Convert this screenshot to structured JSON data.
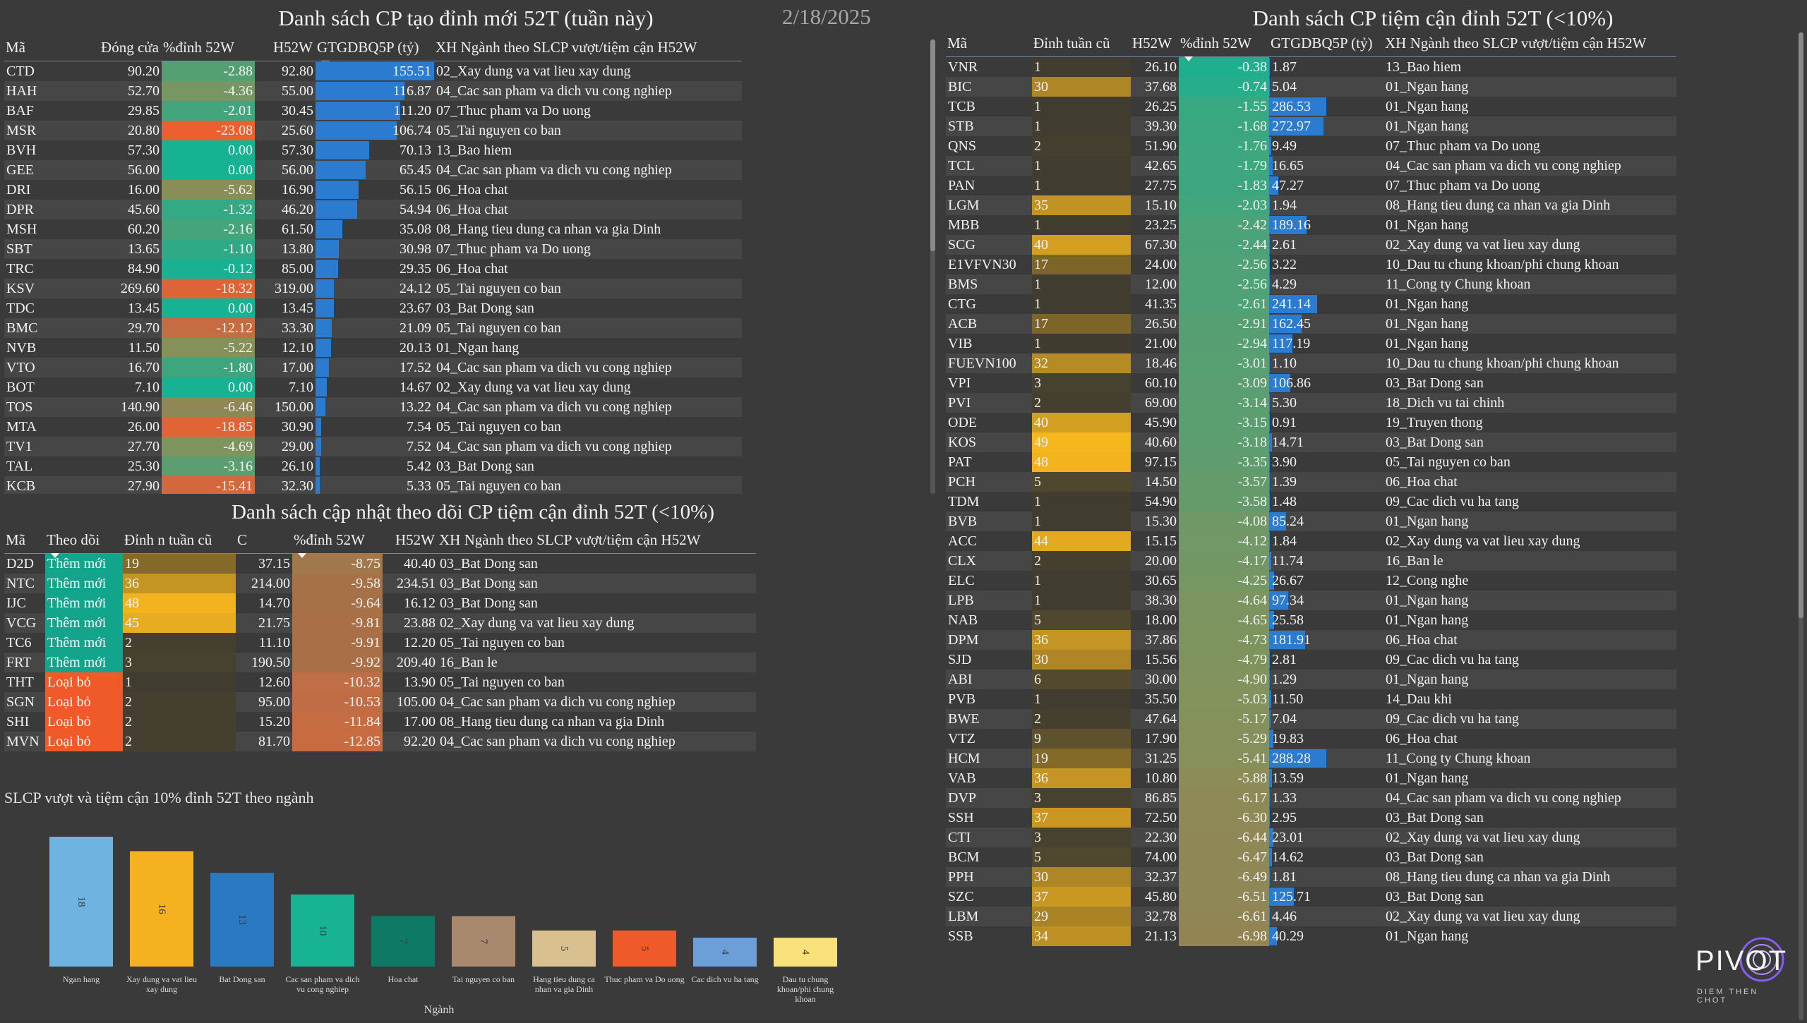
{
  "date": "2/18/2025",
  "new_highs": {
    "title": "Danh sách CP tạo đỉnh mới 52T (tuần này)",
    "columns": [
      "Mã",
      "Đóng cửa",
      "%đỉnh 52W",
      "H52W",
      "GTGDBQ5P (tỷ)",
      "XH Ngành theo SLCP vượt/tiệm cận H52W"
    ],
    "rows": [
      [
        "CTD",
        "90.20",
        "-2.88",
        "92.80",
        "155.51",
        "02_Xay dung va vat lieu xay dung"
      ],
      [
        "HAH",
        "52.70",
        "-4.36",
        "55.00",
        "116.87",
        "04_Cac san pham va dich vu cong nghiep"
      ],
      [
        "BAF",
        "29.85",
        "-2.01",
        "30.45",
        "111.20",
        "07_Thuc pham va Do uong"
      ],
      [
        "MSR",
        "20.80",
        "-23.08",
        "25.60",
        "106.74",
        "05_Tai nguyen co ban"
      ],
      [
        "BVH",
        "57.30",
        "0.00",
        "57.30",
        "70.13",
        "13_Bao hiem"
      ],
      [
        "GEE",
        "56.00",
        "0.00",
        "56.00",
        "65.45",
        "04_Cac san pham va dich vu cong nghiep"
      ],
      [
        "DRI",
        "16.00",
        "-5.62",
        "16.90",
        "56.15",
        "06_Hoa chat"
      ],
      [
        "DPR",
        "45.60",
        "-1.32",
        "46.20",
        "54.94",
        "06_Hoa chat"
      ],
      [
        "MSH",
        "60.20",
        "-2.16",
        "61.50",
        "35.08",
        "08_Hang tieu dung ca nhan va gia Dinh"
      ],
      [
        "SBT",
        "13.65",
        "-1.10",
        "13.80",
        "30.98",
        "07_Thuc pham va Do uong"
      ],
      [
        "TRC",
        "84.90",
        "-0.12",
        "85.00",
        "29.35",
        "06_Hoa chat"
      ],
      [
        "KSV",
        "269.60",
        "-18.32",
        "319.00",
        "24.12",
        "05_Tai nguyen co ban"
      ],
      [
        "TDC",
        "13.45",
        "0.00",
        "13.45",
        "23.67",
        "03_Bat Dong san"
      ],
      [
        "BMC",
        "29.70",
        "-12.12",
        "33.30",
        "21.09",
        "05_Tai nguyen co ban"
      ],
      [
        "NVB",
        "11.50",
        "-5.22",
        "12.10",
        "20.13",
        "01_Ngan hang"
      ],
      [
        "VTO",
        "16.70",
        "-1.80",
        "17.00",
        "17.52",
        "04_Cac san pham va dich vu cong nghiep"
      ],
      [
        "BOT",
        "7.10",
        "0.00",
        "7.10",
        "14.67",
        "02_Xay dung va vat lieu xay dung"
      ],
      [
        "TOS",
        "140.90",
        "-6.46",
        "150.00",
        "13.22",
        "04_Cac san pham va dich vu cong nghiep"
      ],
      [
        "MTA",
        "26.00",
        "-18.85",
        "30.90",
        "7.54",
        "05_Tai nguyen co ban"
      ],
      [
        "TV1",
        "27.70",
        "-4.69",
        "29.00",
        "7.52",
        "04_Cac san pham va dich vu cong nghiep"
      ],
      [
        "TAL",
        "25.30",
        "-3.16",
        "26.10",
        "5.42",
        "03_Bat Dong san"
      ],
      [
        "KCB",
        "27.90",
        "-15.41",
        "32.30",
        "5.33",
        "05_Tai nguyen co ban"
      ]
    ]
  },
  "watch_updates": {
    "title": "Danh sách cập nhật theo dõi CP tiệm cận đỉnh 52T (<10%)",
    "columns": [
      "Mã",
      "Theo dõi",
      "Đỉnh n tuần cũ",
      "C",
      "%đỉnh 52W",
      "H52W",
      "XH Ngành theo SLCP vượt/tiệm cận H52W"
    ],
    "rows": [
      [
        "D2D",
        "Thêm mới",
        "19",
        "37.15",
        "-8.75",
        "40.40",
        "03_Bat Dong san"
      ],
      [
        "NTC",
        "Thêm mới",
        "36",
        "214.00",
        "-9.58",
        "234.51",
        "03_Bat Dong san"
      ],
      [
        "IJC",
        "Thêm mới",
        "48",
        "14.70",
        "-9.64",
        "16.12",
        "03_Bat Dong san"
      ],
      [
        "VCG",
        "Thêm mới",
        "45",
        "21.75",
        "-9.81",
        "23.88",
        "02_Xay dung va vat lieu xay dung"
      ],
      [
        "TC6",
        "Thêm mới",
        "2",
        "11.10",
        "-9.91",
        "12.20",
        "05_Tai nguyen co ban"
      ],
      [
        "FRT",
        "Thêm mới",
        "3",
        "190.50",
        "-9.92",
        "209.40",
        "16_Ban le"
      ],
      [
        "THT",
        "Loại bỏ",
        "1",
        "12.60",
        "-10.32",
        "13.90",
        "05_Tai nguyen co ban"
      ],
      [
        "SGN",
        "Loại bỏ",
        "2",
        "95.00",
        "-10.53",
        "105.00",
        "04_Cac san pham va dich vu cong nghiep"
      ],
      [
        "SHI",
        "Loại bỏ",
        "2",
        "15.20",
        "-11.84",
        "17.00",
        "08_Hang tieu dung ca nhan va gia Dinh"
      ],
      [
        "MVN",
        "Loại bỏ",
        "2",
        "81.70",
        "-12.85",
        "92.20",
        "04_Cac san pham va dich vu cong nghiep"
      ]
    ]
  },
  "near_highs": {
    "title": "Danh sách CP tiệm cận đỉnh 52T (<10%)",
    "columns": [
      "Mã",
      "Đỉnh tuần cũ",
      "H52W",
      "%đỉnh 52W",
      "GTGDBQ5P (tỷ)",
      "XH Ngành theo SLCP vượt/tiệm cận H52W"
    ],
    "rows": [
      [
        "VNR",
        "1",
        "26.10",
        "-0.38",
        "1.87",
        "13_Bao hiem"
      ],
      [
        "BIC",
        "30",
        "37.68",
        "-0.74",
        "5.04",
        "01_Ngan hang"
      ],
      [
        "TCB",
        "1",
        "26.25",
        "-1.55",
        "286.53",
        "01_Ngan hang"
      ],
      [
        "STB",
        "1",
        "39.30",
        "-1.68",
        "272.97",
        "01_Ngan hang"
      ],
      [
        "QNS",
        "2",
        "51.90",
        "-1.76",
        "9.49",
        "07_Thuc pham va Do uong"
      ],
      [
        "TCL",
        "1",
        "42.65",
        "-1.79",
        "16.65",
        "04_Cac san pham va dich vu cong nghiep"
      ],
      [
        "PAN",
        "1",
        "27.75",
        "-1.83",
        "47.27",
        "07_Thuc pham va Do uong"
      ],
      [
        "LGM",
        "35",
        "15.10",
        "-2.03",
        "1.94",
        "08_Hang tieu dung ca nhan va gia Dinh"
      ],
      [
        "MBB",
        "1",
        "23.25",
        "-2.42",
        "189.16",
        "01_Ngan hang"
      ],
      [
        "SCG",
        "40",
        "67.30",
        "-2.44",
        "2.61",
        "02_Xay dung va vat lieu xay dung"
      ],
      [
        "E1VFVN30",
        "17",
        "24.00",
        "-2.56",
        "3.22",
        "10_Dau tu chung khoan/phi chung khoan"
      ],
      [
        "BMS",
        "1",
        "12.00",
        "-2.56",
        "4.29",
        "11_Cong ty Chung khoan"
      ],
      [
        "CTG",
        "1",
        "41.35",
        "-2.61",
        "241.14",
        "01_Ngan hang"
      ],
      [
        "ACB",
        "17",
        "26.50",
        "-2.91",
        "162.45",
        "01_Ngan hang"
      ],
      [
        "VIB",
        "1",
        "21.00",
        "-2.94",
        "117.19",
        "01_Ngan hang"
      ],
      [
        "FUEVN100",
        "32",
        "18.46",
        "-3.01",
        "1.10",
        "10_Dau tu chung khoan/phi chung khoan"
      ],
      [
        "VPI",
        "3",
        "60.10",
        "-3.09",
        "106.86",
        "03_Bat Dong san"
      ],
      [
        "PVI",
        "2",
        "69.00",
        "-3.14",
        "5.30",
        "18_Dich vu tai chinh"
      ],
      [
        "ODE",
        "40",
        "45.90",
        "-3.15",
        "0.91",
        "19_Truyen thong"
      ],
      [
        "KOS",
        "49",
        "40.60",
        "-3.18",
        "14.71",
        "03_Bat Dong san"
      ],
      [
        "PAT",
        "48",
        "97.15",
        "-3.35",
        "3.90",
        "05_Tai nguyen co ban"
      ],
      [
        "PCH",
        "5",
        "14.50",
        "-3.57",
        "1.39",
        "06_Hoa chat"
      ],
      [
        "TDM",
        "1",
        "54.90",
        "-3.58",
        "1.48",
        "09_Cac dich vu ha tang"
      ],
      [
        "BVB",
        "1",
        "15.30",
        "-4.08",
        "85.24",
        "01_Ngan hang"
      ],
      [
        "ACC",
        "44",
        "15.15",
        "-4.12",
        "1.84",
        "02_Xay dung va vat lieu xay dung"
      ],
      [
        "CLX",
        "2",
        "20.00",
        "-4.17",
        "11.74",
        "16_Ban le"
      ],
      [
        "ELC",
        "1",
        "30.65",
        "-4.25",
        "26.67",
        "12_Cong nghe"
      ],
      [
        "LPB",
        "1",
        "38.30",
        "-4.64",
        "97.34",
        "01_Ngan hang"
      ],
      [
        "NAB",
        "5",
        "18.00",
        "-4.65",
        "25.58",
        "01_Ngan hang"
      ],
      [
        "DPM",
        "36",
        "37.86",
        "-4.73",
        "181.91",
        "06_Hoa chat"
      ],
      [
        "SJD",
        "30",
        "15.56",
        "-4.79",
        "2.81",
        "09_Cac dich vu ha tang"
      ],
      [
        "ABI",
        "6",
        "30.00",
        "-4.90",
        "1.29",
        "01_Ngan hang"
      ],
      [
        "PVB",
        "1",
        "35.50",
        "-5.03",
        "11.50",
        "14_Dau khi"
      ],
      [
        "BWE",
        "2",
        "47.64",
        "-5.17",
        "7.04",
        "09_Cac dich vu ha tang"
      ],
      [
        "VTZ",
        "9",
        "17.90",
        "-5.29",
        "19.83",
        "06_Hoa chat"
      ],
      [
        "HCM",
        "19",
        "31.25",
        "-5.41",
        "288.28",
        "11_Cong ty Chung khoan"
      ],
      [
        "VAB",
        "36",
        "10.80",
        "-5.88",
        "13.59",
        "01_Ngan hang"
      ],
      [
        "DVP",
        "3",
        "86.85",
        "-6.17",
        "1.33",
        "04_Cac san pham va dich vu cong nghiep"
      ],
      [
        "SSH",
        "37",
        "72.50",
        "-6.30",
        "2.95",
        "03_Bat Dong san"
      ],
      [
        "CTI",
        "3",
        "22.30",
        "-6.44",
        "23.01",
        "02_Xay dung va vat lieu xay dung"
      ],
      [
        "BCM",
        "5",
        "74.00",
        "-6.47",
        "14.62",
        "03_Bat Dong san"
      ],
      [
        "PPH",
        "30",
        "32.37",
        "-6.49",
        "1.81",
        "08_Hang tieu dung ca nhan va gia Dinh"
      ],
      [
        "SZC",
        "37",
        "45.80",
        "-6.51",
        "125.71",
        "03_Bat Dong san"
      ],
      [
        "LBM",
        "29",
        "32.78",
        "-6.61",
        "4.46",
        "02_Xay dung va vat lieu xay dung"
      ],
      [
        "SSB",
        "34",
        "21.13",
        "-6.98",
        "40.29",
        "01_Ngan hang"
      ]
    ]
  },
  "chart_data": {
    "type": "bar",
    "title": "SLCP vượt và tiệm cận 10% đỉnh 52T theo ngành",
    "xlabel": "Ngành",
    "ylabel": "",
    "categories": [
      "Ngan hang",
      "Xay dung va vat lieu xay dung",
      "Bat Dong san",
      "Cac san pham va dich vu cong nghiep",
      "Hoa chat",
      "Tai nguyen co ban",
      "Hang tieu dung ca nhan va gia Dinh",
      "Thuc pham va Do uong",
      "Cac dich vu ha tang",
      "Dau tu chung khoan/phi chung khoan"
    ],
    "values": [
      18,
      16,
      13,
      10,
      7,
      7,
      5,
      5,
      4,
      4
    ],
    "colors": [
      "#6fb3e0",
      "#f5b120",
      "#2a7ac2",
      "#17b393",
      "#0e7a66",
      "#a8896e",
      "#d9c08f",
      "#f0592a",
      "#6c9fd8",
      "#f8e07a"
    ],
    "ylim": [
      0,
      18
    ]
  },
  "colors": {
    "bar_blue": "#2b7bd0",
    "status_add": "#13a58c",
    "status_remove": "#ef5a28"
  },
  "logo": {
    "text": "PIVOT",
    "tagline": "DIEM THEN CHOT"
  }
}
